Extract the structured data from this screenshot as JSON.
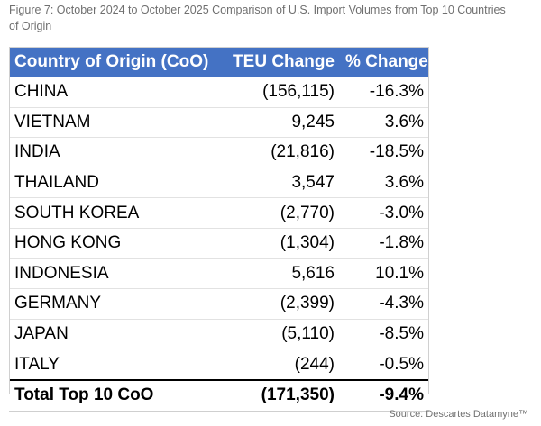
{
  "caption": "Figure 7: October 2024 to October 2025 Comparison of U.S. Import Volumes from Top 10 Countries of Origin",
  "table": {
    "headers": [
      "Country of Origin (CoO)",
      "TEU Change",
      "% Change"
    ],
    "rows": [
      {
        "country": "CHINA",
        "teu": "(156,115)",
        "pct": "-16.3%"
      },
      {
        "country": "VIETNAM",
        "teu": "9,245",
        "pct": "3.6%"
      },
      {
        "country": "INDIA",
        "teu": "(21,816)",
        "pct": "-18.5%"
      },
      {
        "country": "THAILAND",
        "teu": "3,547",
        "pct": "3.6%"
      },
      {
        "country": "SOUTH KOREA",
        "teu": "(2,770)",
        "pct": "-3.0%"
      },
      {
        "country": "HONG KONG",
        "teu": "(1,304)",
        "pct": "-1.8%"
      },
      {
        "country": "INDONESIA",
        "teu": "5,616",
        "pct": "10.1%"
      },
      {
        "country": "GERMANY",
        "teu": "(2,399)",
        "pct": "-4.3%"
      },
      {
        "country": "JAPAN",
        "teu": "(5,110)",
        "pct": "-8.5%"
      },
      {
        "country": "ITALY",
        "teu": "(244)",
        "pct": "-0.5%"
      }
    ],
    "total": {
      "country": "Total Top 10 CoO",
      "teu": "(171,350)",
      "pct": "-9.4%"
    }
  },
  "source": "Source: Descartes Datamyne™",
  "colors": {
    "header_bg": "#4472c4",
    "header_text": "#ffffff"
  }
}
